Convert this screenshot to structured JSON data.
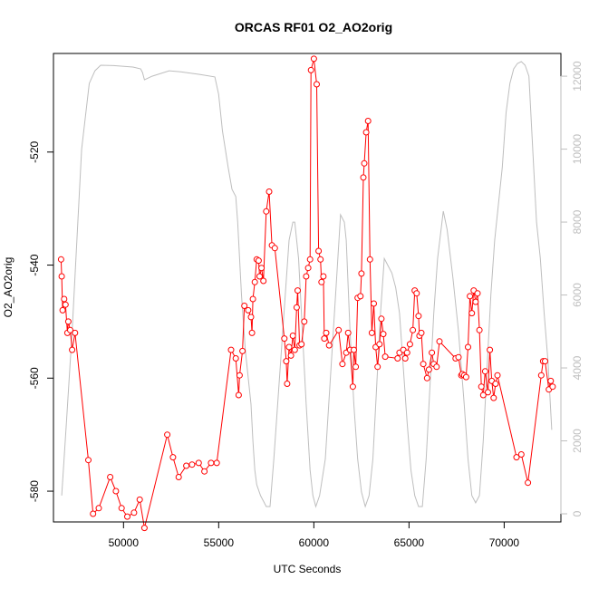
{
  "chart_data": {
    "type": "line",
    "title": "ORCAS RF01 O2_AO2orig",
    "xlabel": "UTC Seconds",
    "ylabel": "O2_AO2orig",
    "xlim": [
      46700,
      72600
    ],
    "ylim": [
      -584,
      -504
    ],
    "y2lim": [
      0,
      12400
    ],
    "x_ticks": [
      50000,
      55000,
      60000,
      65000,
      70000
    ],
    "y_ticks": [
      -580,
      -560,
      -540,
      -520
    ],
    "y2_ticks": [
      0,
      2000,
      4000,
      6000,
      8000,
      10000,
      12000
    ],
    "grid": false,
    "legend": "none",
    "colors": {
      "primary": "#ff0000",
      "secondary": "#bebebe",
      "axis": "#000000"
    },
    "series": [
      {
        "axis": "left",
        "style": "line+points",
        "points": [
          [
            46720,
            -539
          ],
          [
            46750,
            -542
          ],
          [
            46800,
            -548
          ],
          [
            46880,
            -546
          ],
          [
            46950,
            -547
          ],
          [
            47050,
            -552
          ],
          [
            47100,
            -550
          ],
          [
            47200,
            -551.5
          ],
          [
            47300,
            -555
          ],
          [
            47450,
            -552
          ],
          [
            48150,
            -574.5
          ],
          [
            48400,
            -584
          ],
          [
            48700,
            -583
          ],
          [
            49300,
            -577.5
          ],
          [
            49600,
            -580
          ],
          [
            49900,
            -583
          ],
          [
            50200,
            -584.5
          ],
          [
            50550,
            -583.8
          ],
          [
            50850,
            -581.5
          ],
          [
            51100,
            -586.5
          ],
          [
            52300,
            -570
          ],
          [
            52600,
            -574
          ],
          [
            52900,
            -577.5
          ],
          [
            53300,
            -575.5
          ],
          [
            53600,
            -575.3
          ],
          [
            53950,
            -575
          ],
          [
            54250,
            -576.5
          ],
          [
            54600,
            -575
          ],
          [
            54900,
            -575
          ],
          [
            55650,
            -555
          ],
          [
            55900,
            -556.5
          ],
          [
            56050,
            -563
          ],
          [
            56100,
            -559.5
          ],
          [
            56250,
            -555.2
          ],
          [
            56350,
            -547.2
          ],
          [
            56550,
            -548
          ],
          [
            56700,
            -549.2
          ],
          [
            56750,
            -552
          ],
          [
            56800,
            -546
          ],
          [
            56900,
            -543
          ],
          [
            57000,
            -539
          ],
          [
            57100,
            -539.2
          ],
          [
            57150,
            -542
          ],
          [
            57250,
            -540.5
          ],
          [
            57350,
            -542.8
          ],
          [
            57500,
            -530.5
          ],
          [
            57650,
            -527
          ],
          [
            57800,
            -536.5
          ],
          [
            57950,
            -537
          ],
          [
            58450,
            -553
          ],
          [
            58550,
            -557
          ],
          [
            58600,
            -561
          ],
          [
            58700,
            -554.5
          ],
          [
            58800,
            -556
          ],
          [
            58900,
            -552.5
          ],
          [
            59000,
            -555
          ],
          [
            59100,
            -547.5
          ],
          [
            59150,
            -544.5
          ],
          [
            59250,
            -554.2
          ],
          [
            59350,
            -554
          ],
          [
            59500,
            -550
          ],
          [
            59600,
            -542
          ],
          [
            59700,
            -540.5
          ],
          [
            59800,
            -539
          ],
          [
            59850,
            -505.5
          ],
          [
            60000,
            -503.5
          ],
          [
            60150,
            -508
          ],
          [
            60250,
            -537.5
          ],
          [
            60350,
            -539
          ],
          [
            60400,
            -543
          ],
          [
            60500,
            -542
          ],
          [
            60550,
            -553
          ],
          [
            60650,
            -552
          ],
          [
            60800,
            -554.2
          ],
          [
            61300,
            -551.5
          ],
          [
            61500,
            -557.5
          ],
          [
            61700,
            -555.5
          ],
          [
            61800,
            -552
          ],
          [
            61900,
            -555
          ],
          [
            62050,
            -561.5
          ],
          [
            62100,
            -555
          ],
          [
            62200,
            -558
          ],
          [
            62300,
            -545.8
          ],
          [
            62450,
            -545.5
          ],
          [
            62500,
            -541.5
          ],
          [
            62600,
            -524.5
          ],
          [
            62650,
            -522
          ],
          [
            62750,
            -516.5
          ],
          [
            62850,
            -514.5
          ],
          [
            62950,
            -539
          ],
          [
            63050,
            -552
          ],
          [
            63150,
            -546.8
          ],
          [
            63250,
            -554.5
          ],
          [
            63350,
            -558
          ],
          [
            63450,
            -554
          ],
          [
            63550,
            -549.5
          ],
          [
            63650,
            -552.2
          ],
          [
            63750,
            -556.2
          ],
          [
            64400,
            -556.5
          ],
          [
            64500,
            -555.5
          ],
          [
            64700,
            -555
          ],
          [
            64800,
            -556.5
          ],
          [
            64900,
            -555.5
          ],
          [
            65050,
            -554
          ],
          [
            65200,
            -551.5
          ],
          [
            65300,
            -544.5
          ],
          [
            65400,
            -545
          ],
          [
            65500,
            -549
          ],
          [
            65550,
            -552.5
          ],
          [
            65650,
            -552
          ],
          [
            65750,
            -557.5
          ],
          [
            65950,
            -560
          ],
          [
            66050,
            -558.5
          ],
          [
            66200,
            -555.5
          ],
          [
            66300,
            -557.5
          ],
          [
            66450,
            -558
          ],
          [
            66600,
            -553.5
          ],
          [
            67450,
            -556.5
          ],
          [
            67600,
            -556.3
          ],
          [
            67750,
            -559.5
          ],
          [
            67800,
            -559.3
          ],
          [
            67900,
            -559.5
          ],
          [
            68000,
            -559.8
          ],
          [
            68100,
            -554.5
          ],
          [
            68200,
            -545.5
          ],
          [
            68300,
            -548.5
          ],
          [
            68400,
            -544.5
          ],
          [
            68500,
            -546.5
          ],
          [
            68600,
            -545
          ],
          [
            68700,
            -551.5
          ],
          [
            68800,
            -561.5
          ],
          [
            68900,
            -563
          ],
          [
            69000,
            -558.8
          ],
          [
            69150,
            -562.5
          ],
          [
            69250,
            -555
          ],
          [
            69350,
            -560.5
          ],
          [
            69450,
            -563.5
          ],
          [
            69550,
            -561
          ],
          [
            69650,
            -559.5
          ],
          [
            70650,
            -574
          ],
          [
            70900,
            -573.5
          ],
          [
            71250,
            -578.5
          ],
          [
            71950,
            -559.5
          ],
          [
            72050,
            -557
          ],
          [
            72150,
            -557
          ],
          [
            72350,
            -562
          ],
          [
            72450,
            -560.5
          ],
          [
            72550,
            -561.5
          ]
        ]
      },
      {
        "axis": "right",
        "style": "line",
        "points": [
          [
            46750,
            500
          ],
          [
            47000,
            2500
          ],
          [
            47300,
            5000
          ],
          [
            47500,
            7000
          ],
          [
            47800,
            10000
          ],
          [
            48200,
            11800
          ],
          [
            48500,
            12150
          ],
          [
            48800,
            12300
          ],
          [
            49500,
            12290
          ],
          [
            50500,
            12250
          ],
          [
            50900,
            12200
          ],
          [
            51000,
            12100
          ],
          [
            51100,
            11900
          ],
          [
            51500,
            12000
          ],
          [
            52400,
            12150
          ],
          [
            53000,
            12120
          ],
          [
            54000,
            12050
          ],
          [
            54800,
            11980
          ],
          [
            55000,
            11500
          ],
          [
            55200,
            10500
          ],
          [
            55500,
            9500
          ],
          [
            55700,
            8900
          ],
          [
            55900,
            8700
          ],
          [
            56000,
            8000
          ],
          [
            56200,
            6000
          ],
          [
            56400,
            4500
          ],
          [
            56600,
            3500
          ],
          [
            56700,
            3000
          ],
          [
            56800,
            2000
          ],
          [
            56900,
            1200
          ],
          [
            57000,
            800
          ],
          [
            57200,
            500
          ],
          [
            57400,
            300
          ],
          [
            57500,
            200
          ],
          [
            57700,
            200
          ],
          [
            57900,
            1500
          ],
          [
            58100,
            3000
          ],
          [
            58300,
            4500
          ],
          [
            58500,
            6000
          ],
          [
            58700,
            7500
          ],
          [
            58900,
            8000
          ],
          [
            59000,
            8000
          ],
          [
            59200,
            7000
          ],
          [
            59400,
            5000
          ],
          [
            59600,
            3000
          ],
          [
            59800,
            1200
          ],
          [
            59950,
            500
          ],
          [
            60100,
            200
          ],
          [
            60300,
            500
          ],
          [
            60600,
            1500
          ],
          [
            60900,
            4000
          ],
          [
            61200,
            6500
          ],
          [
            61400,
            8200
          ],
          [
            61600,
            8000
          ],
          [
            61700,
            7500
          ],
          [
            61900,
            5000
          ],
          [
            62100,
            3000
          ],
          [
            62300,
            1500
          ],
          [
            62500,
            600
          ],
          [
            62700,
            200
          ],
          [
            62900,
            500
          ],
          [
            63100,
            1500
          ],
          [
            63300,
            3500
          ],
          [
            63500,
            5500
          ],
          [
            63700,
            7000
          ],
          [
            63900,
            6800
          ],
          [
            64100,
            6600
          ],
          [
            64300,
            6200
          ],
          [
            64500,
            5500
          ],
          [
            64700,
            4000
          ],
          [
            64900,
            2500
          ],
          [
            65100,
            1200
          ],
          [
            65300,
            500
          ],
          [
            65500,
            200
          ],
          [
            65700,
            200
          ],
          [
            65900,
            1500
          ],
          [
            66100,
            3500
          ],
          [
            66300,
            5500
          ],
          [
            66500,
            7000
          ],
          [
            66800,
            8300
          ],
          [
            67000,
            7800
          ],
          [
            67300,
            6500
          ],
          [
            67600,
            5000
          ],
          [
            67900,
            3000
          ],
          [
            68100,
            1500
          ],
          [
            68300,
            500
          ],
          [
            68500,
            300
          ],
          [
            68700,
            500
          ],
          [
            68900,
            2000
          ],
          [
            69100,
            4000
          ],
          [
            69300,
            6000
          ],
          [
            69500,
            7500
          ],
          [
            69700,
            8500
          ],
          [
            69900,
            9500
          ],
          [
            70100,
            11000
          ],
          [
            70300,
            11800
          ],
          [
            70500,
            12200
          ],
          [
            70700,
            12350
          ],
          [
            70900,
            12400
          ],
          [
            71100,
            12300
          ],
          [
            71300,
            12000
          ],
          [
            71500,
            10000
          ],
          [
            71700,
            8000
          ],
          [
            71900,
            7000
          ],
          [
            72100,
            5500
          ],
          [
            72300,
            4200
          ],
          [
            72500,
            2300
          ]
        ]
      }
    ]
  }
}
